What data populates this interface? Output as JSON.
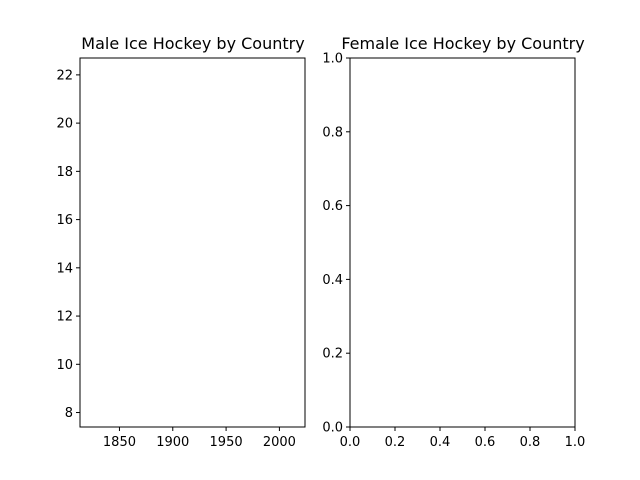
{
  "chart_data": [
    {
      "type": "line",
      "title": "Male Ice Hockey by Country",
      "xlabel": "",
      "ylabel": "",
      "xlim": [
        1813,
        2024
      ],
      "ylim": [
        7.4,
        22.7
      ],
      "xticks": [
        1850,
        1900,
        1950,
        2000
      ],
      "yticks": [
        8,
        10,
        12,
        14,
        16,
        18,
        20,
        22
      ],
      "xtick_labels": [
        "1850",
        "1900",
        "1950",
        "2000"
      ],
      "ytick_labels": [
        "8",
        "10",
        "12",
        "14",
        "16",
        "18",
        "20",
        "22"
      ],
      "series": [],
      "grid": false
    },
    {
      "type": "line",
      "title": "Female Ice Hockey by Country",
      "xlabel": "",
      "ylabel": "",
      "xlim": [
        0,
        1
      ],
      "ylim": [
        0,
        1
      ],
      "xticks": [
        0,
        0.2,
        0.4,
        0.6,
        0.8,
        1.0
      ],
      "yticks": [
        0,
        0.2,
        0.4,
        0.6,
        0.8,
        1.0
      ],
      "xtick_labels": [
        "0.0",
        "0.2",
        "0.4",
        "0.6",
        "0.8",
        "1.0"
      ],
      "ytick_labels": [
        "0.0",
        "0.2",
        "0.4",
        "0.6",
        "0.8",
        "1.0"
      ],
      "series": [],
      "grid": false
    }
  ]
}
